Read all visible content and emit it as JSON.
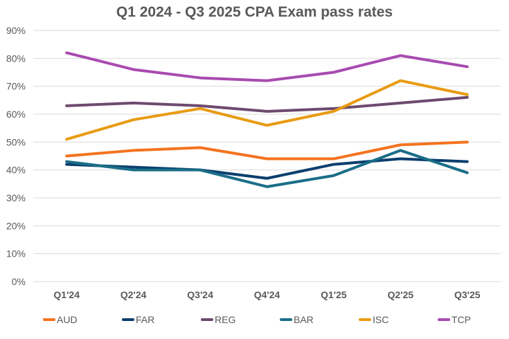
{
  "chart_data": {
    "type": "line",
    "title": "Q1 2024 - Q3 2025 CPA Exam pass rates",
    "xlabel": "",
    "ylabel": "",
    "x": [
      "Q1'24",
      "Q2'24",
      "Q3'24",
      "Q4'24",
      "Q1'25",
      "Q2'25",
      "Q3'25"
    ],
    "yticks": [
      "0%",
      "10%",
      "20%",
      "30%",
      "40%",
      "50%",
      "60%",
      "70%",
      "80%",
      "90%"
    ],
    "ylim": [
      0,
      90
    ],
    "grid": true,
    "legend_position": "bottom",
    "series": [
      {
        "name": "AUD",
        "color": "#F4731F",
        "values": [
          45,
          47,
          48,
          44,
          44,
          49,
          50
        ]
      },
      {
        "name": "FAR",
        "color": "#0B3F6E",
        "values": [
          42,
          41,
          40,
          37,
          42,
          44,
          43
        ]
      },
      {
        "name": "REG",
        "color": "#6E4A6E",
        "values": [
          63,
          64,
          63,
          61,
          62,
          64,
          66
        ]
      },
      {
        "name": "BAR",
        "color": "#1B6E88",
        "values": [
          43,
          40,
          40,
          34,
          38,
          47,
          39
        ]
      },
      {
        "name": "ISC",
        "color": "#E89B12",
        "values": [
          51,
          58,
          62,
          56,
          61,
          72,
          67
        ]
      },
      {
        "name": "TCP",
        "color": "#A84BB0",
        "values": [
          82,
          76,
          73,
          72,
          75,
          81,
          77
        ]
      }
    ]
  }
}
